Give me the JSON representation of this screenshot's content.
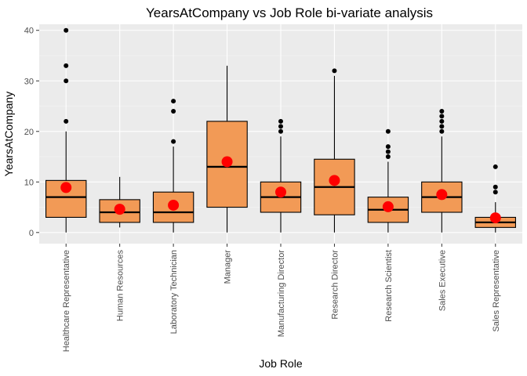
{
  "chart_data": {
    "type": "boxplot",
    "title": "YearsAtCompany vs Job Role bi-variate analysis",
    "xlabel": "Job Role",
    "ylabel": "YearsAtCompany",
    "ylim": [
      -2.2,
      41.2
    ],
    "yticks": [
      0,
      10,
      20,
      30,
      40
    ],
    "grid": true,
    "colors": {
      "panel": "#ebebeb",
      "grid_major": "#ffffff",
      "grid_minor": "#f5f5f5",
      "box_fill": "#f29a56",
      "box_stroke": "#000000",
      "mean_point": "#ff0000",
      "outlier": "#000000"
    },
    "categories": [
      "Healthcare Representative",
      "Human Resources",
      "Laboratory Technician",
      "Manager",
      "Manufacturing Director",
      "Research Director",
      "Research Scientist",
      "Sales Executive",
      "Sales Representative"
    ],
    "boxes": [
      {
        "category": "Healthcare Representative",
        "min": 0,
        "q1": 3,
        "median": 7,
        "q3": 10.3,
        "max": 20,
        "mean": 8.9,
        "outliers": [
          22,
          30,
          33,
          40
        ]
      },
      {
        "category": "Human Resources",
        "min": 1,
        "q1": 2,
        "median": 4,
        "q3": 6.5,
        "max": 11,
        "mean": 4.6,
        "outliers": []
      },
      {
        "category": "Laboratory Technician",
        "min": 0,
        "q1": 2,
        "median": 4,
        "q3": 8,
        "max": 17,
        "mean": 5.4,
        "outliers": [
          18,
          24,
          26
        ]
      },
      {
        "category": "Manager",
        "min": 0,
        "q1": 5,
        "median": 13,
        "q3": 22,
        "max": 33,
        "mean": 14,
        "outliers": []
      },
      {
        "category": "Manufacturing Director",
        "min": 0,
        "q1": 4,
        "median": 7,
        "q3": 10,
        "max": 19,
        "mean": 8,
        "outliers": [
          20,
          21,
          22
        ]
      },
      {
        "category": "Research Director",
        "min": 0,
        "q1": 3.5,
        "median": 9,
        "q3": 14.5,
        "max": 31,
        "mean": 10.3,
        "outliers": [
          32
        ]
      },
      {
        "category": "Research Scientist",
        "min": 0,
        "q1": 2,
        "median": 4.5,
        "q3": 7,
        "max": 14,
        "mean": 5.1,
        "outliers": [
          15,
          16,
          17,
          20
        ]
      },
      {
        "category": "Sales Executive",
        "min": 0,
        "q1": 4,
        "median": 7,
        "q3": 10,
        "max": 19,
        "mean": 7.5,
        "outliers": [
          20,
          21,
          22,
          23,
          24
        ]
      },
      {
        "category": "Sales Representative",
        "min": 0,
        "q1": 1,
        "median": 2,
        "q3": 3,
        "max": 6,
        "mean": 2.9,
        "outliers": [
          8,
          9,
          13
        ]
      }
    ]
  }
}
